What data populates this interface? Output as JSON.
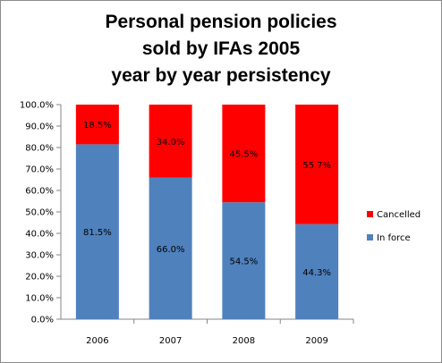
{
  "chart_data": {
    "type": "bar",
    "stacked": true,
    "title_lines": [
      "Personal pension policies",
      "sold by IFAs 2005",
      "year by year persistency"
    ],
    "categories": [
      "2006",
      "2007",
      "2008",
      "2009"
    ],
    "series": [
      {
        "name": "In force",
        "color": "#4f81bd",
        "values": [
          81.5,
          66.0,
          54.5,
          44.3
        ],
        "labels": [
          "81.5%",
          "66.0%",
          "54.5%",
          "44.3%"
        ]
      },
      {
        "name": "Cancelled",
        "color": "#ff0000",
        "values": [
          18.5,
          34.0,
          45.5,
          55.7
        ],
        "labels": [
          "18.5%",
          "34.0%",
          "45.5%",
          "55.7%"
        ]
      }
    ],
    "ylim": [
      0,
      100
    ],
    "yticks": [
      "0.0%",
      "10.0%",
      "20.0%",
      "30.0%",
      "40.0%",
      "50.0%",
      "60.0%",
      "70.0%",
      "80.0%",
      "90.0%",
      "100.0%"
    ],
    "legend_position": "right",
    "legend": [
      "Cancelled",
      "In force"
    ],
    "grid": false
  }
}
